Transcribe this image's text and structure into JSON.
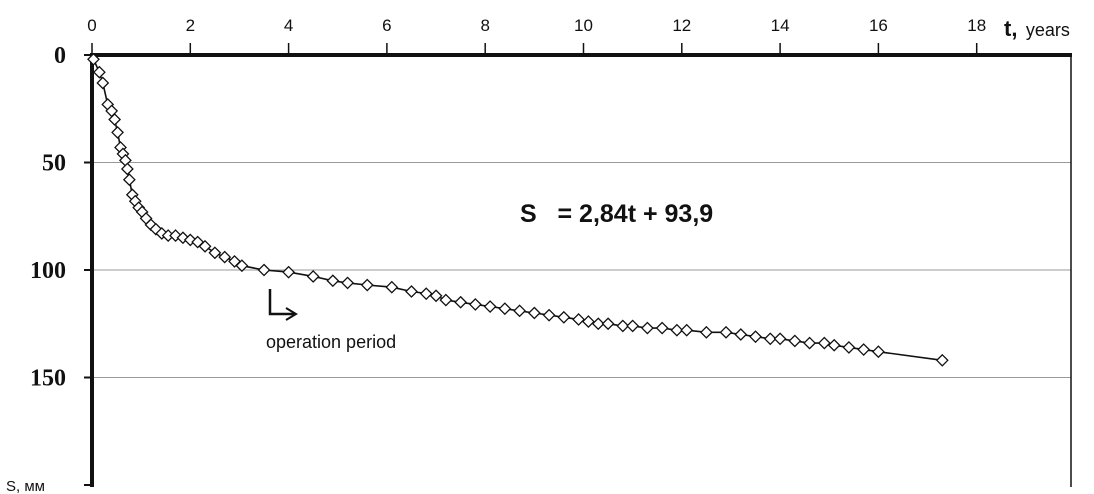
{
  "chart_data": {
    "type": "scatter",
    "title": "",
    "xlabel": "t,",
    "xlabel_unit": "years",
    "ylabel": "S, мм",
    "xlim": [
      0,
      20
    ],
    "ylim": [
      0,
      185
    ],
    "y_inverted": true,
    "x_axis_position": "top",
    "x_ticks": [
      0,
      2,
      4,
      6,
      8,
      10,
      12,
      14,
      16,
      18
    ],
    "y_ticks": [
      0,
      50,
      100,
      150
    ],
    "grid": "horizontal",
    "equation": "S   = 2,84t + 93,9",
    "annotation": "operation period",
    "annotation_at": {
      "x": 3.6,
      "y": 106
    },
    "marker": "diamond",
    "colors": {
      "line": "#111111",
      "marker_stroke": "#111111",
      "marker_fill": "#ffffff",
      "grid": "#999999"
    },
    "series": [
      {
        "x": [
          0.03,
          0.15,
          0.22,
          0.32,
          0.4,
          0.46,
          0.52,
          0.58,
          0.63,
          0.68,
          0.72,
          0.76,
          0.82,
          0.88,
          0.95,
          1.02,
          1.1,
          1.2,
          1.3,
          1.42,
          1.55,
          1.7,
          1.85,
          2.0,
          2.15,
          2.3,
          2.5,
          2.7,
          2.9,
          3.05,
          3.5,
          4.0,
          4.5,
          4.9,
          5.2,
          5.6,
          6.1,
          6.5,
          6.8,
          7.0,
          7.2,
          7.5,
          7.8,
          8.1,
          8.4,
          8.7,
          9.0,
          9.3,
          9.6,
          9.9,
          10.1,
          10.3,
          10.5,
          10.8,
          11.0,
          11.3,
          11.6,
          11.9,
          12.1,
          12.5,
          12.9,
          13.2,
          13.5,
          13.8,
          14.0,
          14.3,
          14.6,
          14.9,
          15.1,
          15.4,
          15.7,
          16.0,
          17.3
        ],
        "y": [
          2,
          8,
          13,
          23,
          26,
          30,
          36,
          43,
          46,
          49,
          53,
          58,
          65,
          68,
          71,
          73,
          76,
          79,
          81,
          83,
          84,
          84,
          85,
          86,
          87,
          89,
          92,
          94,
          96,
          98,
          100,
          101,
          103,
          105,
          106,
          107,
          108,
          110,
          111,
          112,
          114,
          115,
          116,
          117,
          118,
          119,
          120,
          121,
          122,
          123,
          124,
          125,
          125,
          126,
          126,
          127,
          127,
          128,
          128,
          129,
          129,
          130,
          131,
          132,
          132,
          133,
          134,
          134,
          135,
          136,
          137,
          138,
          142
        ]
      }
    ]
  }
}
